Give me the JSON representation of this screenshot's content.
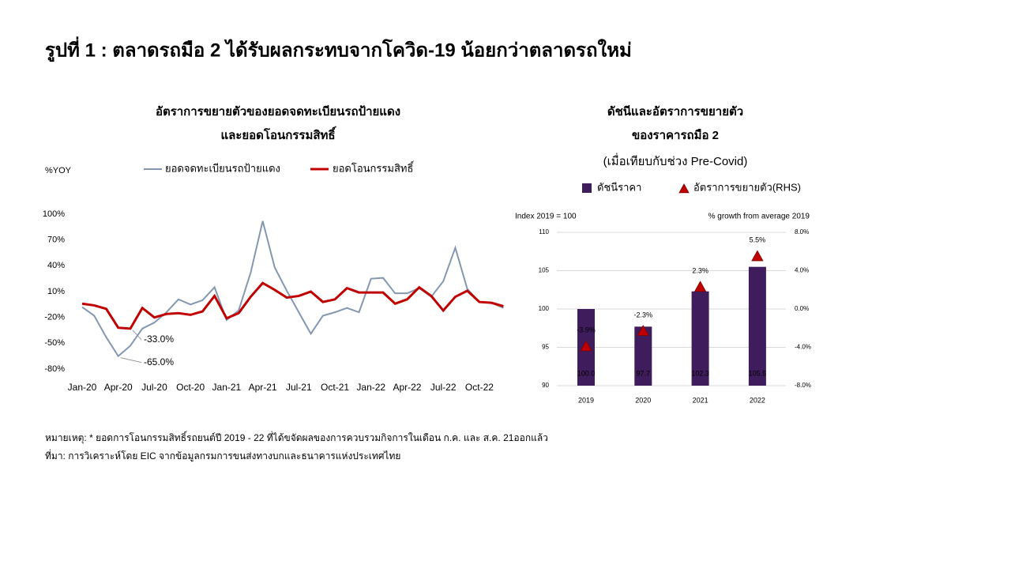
{
  "title": "รูปที่ 1 : ตลาดรถมือ 2 ได้รับผลกระทบจากโควิด-19 น้อยกว่าตลาดรถใหม่",
  "chart_data": [
    {
      "type": "line",
      "title": [
        "อัตราการขยายตัวของยอดจดทะเบียนรถป้ายแดง",
        "และยอดโอนกรรมสิทธิ์"
      ],
      "y_label": "%YOY",
      "categories": [
        "Jan-20",
        null,
        null,
        "Apr-20",
        null,
        null,
        "Jul-20",
        null,
        null,
        "Oct-20",
        null,
        null,
        "Jan-21",
        null,
        null,
        "Apr-21",
        null,
        null,
        "Jul-21",
        null,
        null,
        "Oct-21",
        null,
        null,
        "Jan-22",
        null,
        null,
        "Apr-22",
        null,
        null,
        "Jul-22",
        null,
        null,
        "Oct-22",
        null,
        null
      ],
      "ylim": [
        -80,
        100
      ],
      "yticks": [
        {
          "value": 100,
          "label": "100%"
        },
        {
          "value": 70,
          "label": "70%"
        },
        {
          "value": 40,
          "label": "40%"
        },
        {
          "value": 10,
          "label": "10%"
        },
        {
          "value": -20,
          "label": "-20%"
        },
        {
          "value": -50,
          "label": "-50%"
        },
        {
          "value": -80,
          "label": "-80%"
        }
      ],
      "grid": false,
      "series": [
        {
          "name": "ยอดจดทะเบียนรถป้ายแดง",
          "color": "#8497b0",
          "values": [
            -8,
            -18,
            -43,
            -65,
            -53,
            -33,
            -26,
            -14,
            1,
            -5,
            0,
            15,
            -23,
            -12,
            32,
            92,
            38,
            11,
            -14,
            -39,
            -18,
            -14,
            -9,
            -14,
            25,
            26,
            8,
            8,
            14,
            4,
            22,
            61,
            13,
            -2,
            -3,
            -9
          ],
          "value_labels": [
            null,
            null,
            null,
            "-65.0%",
            null,
            null,
            null,
            null,
            null,
            null,
            null,
            null,
            null,
            null,
            null,
            null,
            null,
            null,
            null,
            null,
            null,
            null,
            null,
            null,
            null,
            null,
            null,
            null,
            null,
            null,
            null,
            null,
            null,
            null,
            null,
            null
          ]
        },
        {
          "name": "ยอดโอนกรรมสิทธิ์",
          "color": "#c00000",
          "values": [
            -4,
            -6,
            -10,
            -32,
            -33,
            -9,
            -20,
            -16,
            -15,
            -17,
            -13,
            5,
            -21,
            -15,
            4,
            20,
            12,
            3,
            5,
            10,
            -2,
            1,
            14,
            9,
            9,
            9,
            -4,
            1,
            15,
            5,
            -12,
            4,
            11,
            -2,
            -3,
            -7
          ],
          "value_labels": [
            null,
            null,
            null,
            null,
            "-33.0%",
            null,
            null,
            null,
            null,
            null,
            null,
            null,
            null,
            null,
            null,
            null,
            null,
            null,
            null,
            null,
            null,
            null,
            null,
            null,
            null,
            null,
            null,
            null,
            null,
            null,
            null,
            null,
            null,
            null,
            null,
            null
          ]
        }
      ]
    },
    {
      "type": "bar",
      "title": [
        "ดัชนีและอัตราการขยายตัว",
        "ของราคารถมือ 2",
        "(เมื่อเทียบกับช่วง Pre-Covid)"
      ],
      "y_label": "Index 2019 = 100",
      "y2_label": "% growth from average 2019",
      "categories": [
        "2019",
        "2020",
        "2021",
        "2022"
      ],
      "ylim": [
        90,
        110
      ],
      "yticks": [
        90,
        95,
        100,
        105,
        110
      ],
      "y2lim": [
        -8,
        8
      ],
      "y2ticks": [
        {
          "value": -8,
          "label": "-8.0%"
        },
        {
          "value": -4,
          "label": "-4.0%"
        },
        {
          "value": 0,
          "label": "0.0%"
        },
        {
          "value": 4,
          "label": "4.0%"
        },
        {
          "value": 8,
          "label": "8.0%"
        }
      ],
      "grid": true,
      "series": [
        {
          "name": "ดัชนีราคา",
          "type": "bar",
          "color": "#3f1d5c",
          "values": [
            100,
            97.7,
            102.3,
            105.5
          ],
          "value_labels": [
            "100.0",
            "97.7",
            "102.3",
            "105.5"
          ]
        },
        {
          "name": "อัตราการขยายตัว(RHS)",
          "type": "scatter",
          "marker": "triangle",
          "axis": "y2",
          "color": "#c00000",
          "values": [
            -3.9,
            -2.3,
            2.3,
            5.5
          ],
          "value_labels": [
            "-3.9%",
            "-2.3%",
            "2.3%",
            "5.5%"
          ]
        }
      ]
    }
  ],
  "notes": [
    "หมายเหตุ: * ยอดการโอนกรรมสิทธิ์รถยนต์ปี 2019 - 22 ที่ได้ขจัดผลของการควบรวมกิจการในเดือน ก.ค. และ ส.ค. 21ออกแล้ว",
    "ที่มา: การวิเคราะห์โดย EIC จากข้อมูลกรมการขนส่งทางบกและธนาคารแห่งประเทศไทย"
  ]
}
